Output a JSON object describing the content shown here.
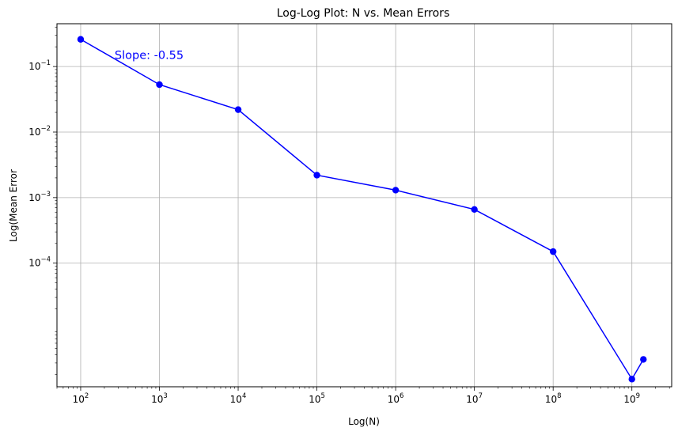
{
  "chart_data": {
    "type": "line",
    "title": "Log-Log Plot: N vs. Mean Errors",
    "xlabel": "Log(N)",
    "ylabel": "Log(Mean Error",
    "xscale": "log",
    "yscale": "log",
    "xlim": [
      50,
      3200000000
    ],
    "ylim": [
      1.3e-06,
      0.45
    ],
    "grid": true,
    "x_ticks": [
      {
        "value": 100,
        "base": "10",
        "exp": "2"
      },
      {
        "value": 1000,
        "base": "10",
        "exp": "3"
      },
      {
        "value": 10000,
        "base": "10",
        "exp": "4"
      },
      {
        "value": 100000,
        "base": "10",
        "exp": "5"
      },
      {
        "value": 1000000,
        "base": "10",
        "exp": "6"
      },
      {
        "value": 10000000,
        "base": "10",
        "exp": "7"
      },
      {
        "value": 100000000,
        "base": "10",
        "exp": "8"
      },
      {
        "value": 1000000000,
        "base": "10",
        "exp": "9"
      }
    ],
    "y_ticks": [
      {
        "value": 0.1,
        "base": "10",
        "exp": "−1"
      },
      {
        "value": 0.01,
        "base": "10",
        "exp": "−2"
      },
      {
        "value": 0.001,
        "base": "10",
        "exp": "−3"
      },
      {
        "value": 0.0001,
        "base": "10",
        "exp": "−4"
      }
    ],
    "series": [
      {
        "color": "#0000ff",
        "marker": "circle",
        "x": [
          100,
          1000,
          10000,
          100000,
          1000000,
          10000000,
          100000000,
          1000000000,
          1400000000
        ],
        "y": [
          0.26,
          0.053,
          0.022,
          0.0022,
          0.0013,
          0.00066,
          0.00015,
          1.7e-06,
          3.4e-06
        ]
      }
    ],
    "annotations": [
      {
        "text": "Slope: -0.55",
        "x": 270,
        "y": 0.15,
        "color": "#0000ff"
      }
    ]
  }
}
